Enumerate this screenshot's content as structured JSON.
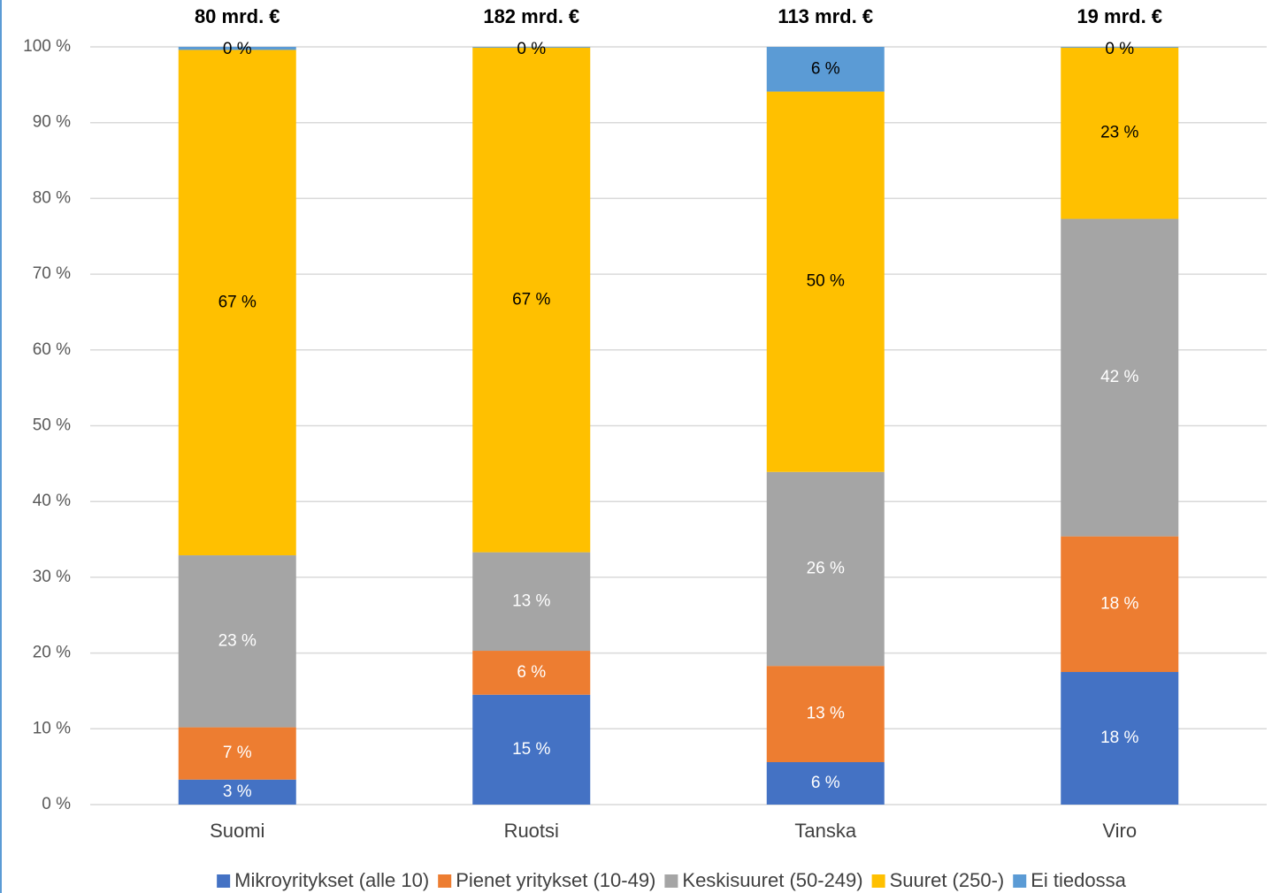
{
  "chart_data": {
    "type": "stacked_bar",
    "categories": [
      "Suomi",
      "Ruotsi",
      "Tanska",
      "Viro"
    ],
    "annotations": [
      "80 mrd. €",
      "182 mrd. €",
      "113 mrd. €",
      "19 mrd. €"
    ],
    "series": [
      {
        "name": "Mikroyritykset (alle 10)",
        "color": "#4472c4",
        "label_color": "#ffffff",
        "values": [
          3.3,
          14.5,
          5.6,
          17.5
        ],
        "value_labels": [
          "3 %",
          "15 %",
          "6 %",
          "18 %"
        ]
      },
      {
        "name": "Pienet yritykset (10-49)",
        "color": "#ed7d31",
        "label_color": "#ffffff",
        "values": [
          6.9,
          5.8,
          12.7,
          17.9
        ],
        "value_labels": [
          "7 %",
          "6 %",
          "13 %",
          "18 %"
        ]
      },
      {
        "name": "Keskisuuret (50-249)",
        "color": "#a5a5a5",
        "label_color": "#ffffff",
        "values": [
          22.7,
          13.0,
          25.6,
          41.9
        ],
        "value_labels": [
          "23 %",
          "13 %",
          "26 %",
          "42 %"
        ]
      },
      {
        "name": "Suuret (250-)",
        "color": "#ffc000",
        "label_color": "#000000",
        "values": [
          66.7,
          66.6,
          50.2,
          22.6
        ],
        "value_labels": [
          "67 %",
          "67 %",
          "50 %",
          "23 %"
        ]
      },
      {
        "name": "Ei tiedossa",
        "color": "#5b9bd5",
        "label_color": "#000000",
        "values": [
          0.4,
          0.1,
          5.9,
          0.1
        ],
        "value_labels": [
          "0 %",
          "0 %",
          "6 %",
          "0 %"
        ]
      }
    ],
    "ylim": [
      0,
      100
    ],
    "yticks": [
      {
        "value": 0,
        "label": "0 %"
      },
      {
        "value": 10,
        "label": "10 %"
      },
      {
        "value": 20,
        "label": "20 %"
      },
      {
        "value": 30,
        "label": "30 %"
      },
      {
        "value": 40,
        "label": "40 %"
      },
      {
        "value": 50,
        "label": "50 %"
      },
      {
        "value": 60,
        "label": "60 %"
      },
      {
        "value": 70,
        "label": "70 %"
      },
      {
        "value": 80,
        "label": "80 %"
      },
      {
        "value": 90,
        "label": "90 %"
      },
      {
        "value": 100,
        "label": "100 %"
      }
    ],
    "grid": true,
    "legend": "bottom"
  }
}
